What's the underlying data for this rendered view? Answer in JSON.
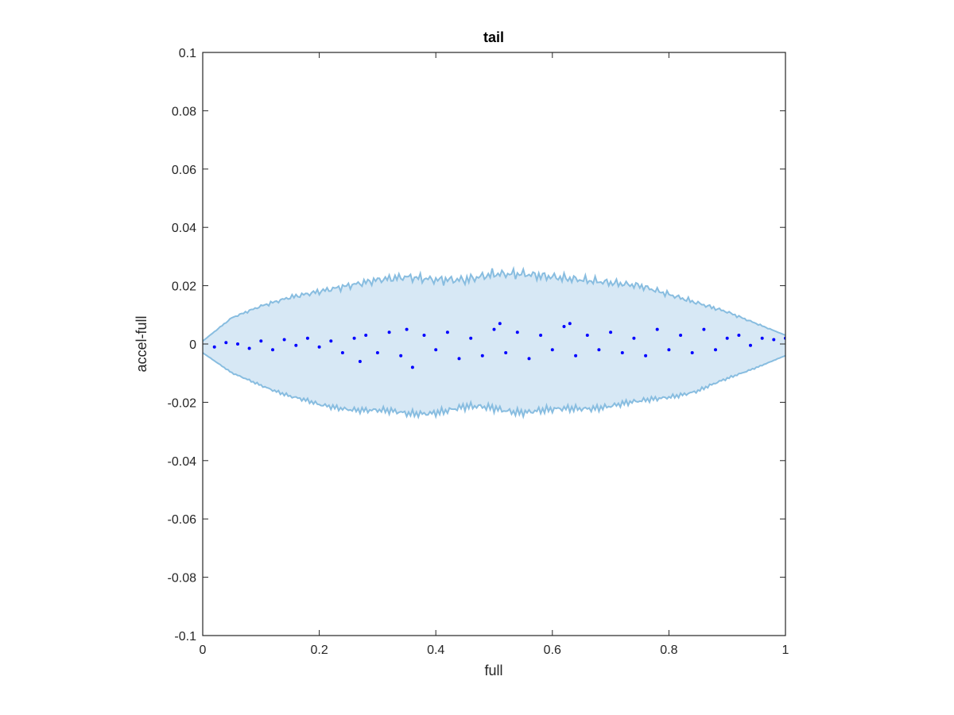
{
  "chart_data": {
    "type": "scatter",
    "title": "tail",
    "xlabel": "full",
    "ylabel": "accel-full",
    "xlim": [
      0,
      1
    ],
    "ylim": [
      -0.1,
      0.1
    ],
    "xticks": [
      0,
      0.2,
      0.4,
      0.6,
      0.8,
      1
    ],
    "xtick_labels": [
      "0",
      "0.2",
      "0.4",
      "0.6",
      "0.8",
      "1"
    ],
    "yticks": [
      -0.1,
      -0.08,
      -0.06,
      -0.04,
      -0.02,
      0,
      0.02,
      0.04,
      0.06,
      0.08,
      0.1
    ],
    "ytick_labels": [
      "-0.1",
      "-0.08",
      "-0.06",
      "-0.04",
      "-0.02",
      "0",
      "0.02",
      "0.04",
      "0.06",
      "0.08",
      "0.1"
    ],
    "grid": false,
    "band": {
      "color": "#88bde0",
      "fill_color": "#d7e8f5",
      "x": [
        0,
        0.05,
        0.1,
        0.15,
        0.2,
        0.25,
        0.3,
        0.35,
        0.4,
        0.45,
        0.5,
        0.55,
        0.6,
        0.65,
        0.7,
        0.75,
        0.8,
        0.85,
        0.9,
        0.95,
        1
      ],
      "upper": [
        0.001,
        0.009,
        0.013,
        0.016,
        0.018,
        0.02,
        0.022,
        0.023,
        0.022,
        0.022,
        0.024,
        0.024,
        0.023,
        0.022,
        0.021,
        0.02,
        0.017,
        0.014,
        0.011,
        0.007,
        0.003
      ],
      "lower": [
        -0.003,
        -0.01,
        -0.014,
        -0.018,
        -0.021,
        -0.022,
        -0.023,
        -0.024,
        -0.023,
        -0.022,
        -0.022,
        -0.023,
        -0.023,
        -0.022,
        -0.021,
        -0.02,
        -0.018,
        -0.016,
        -0.012,
        -0.008,
        -0.004
      ]
    },
    "points": {
      "color": "#0000ff",
      "x": [
        0.02,
        0.04,
        0.06,
        0.08,
        0.1,
        0.12,
        0.14,
        0.16,
        0.18,
        0.2,
        0.22,
        0.24,
        0.26,
        0.27,
        0.28,
        0.3,
        0.32,
        0.34,
        0.35,
        0.36,
        0.38,
        0.4,
        0.42,
        0.44,
        0.46,
        0.48,
        0.5,
        0.51,
        0.52,
        0.54,
        0.56,
        0.58,
        0.6,
        0.62,
        0.63,
        0.64,
        0.66,
        0.68,
        0.7,
        0.72,
        0.74,
        0.76,
        0.78,
        0.8,
        0.82,
        0.84,
        0.86,
        0.88,
        0.9,
        0.92,
        0.94,
        0.96,
        0.98,
        1.0
      ],
      "y": [
        -0.001,
        0.0005,
        0.0,
        -0.0015,
        0.001,
        -0.002,
        0.0015,
        -0.0005,
        0.002,
        -0.001,
        0.001,
        -0.003,
        0.002,
        -0.006,
        0.003,
        -0.003,
        0.004,
        -0.004,
        0.005,
        -0.008,
        0.003,
        -0.002,
        0.004,
        -0.005,
        0.002,
        -0.004,
        0.005,
        0.007,
        -0.003,
        0.004,
        -0.005,
        0.003,
        -0.002,
        0.006,
        0.007,
        -0.004,
        0.003,
        -0.002,
        0.004,
        -0.003,
        0.002,
        -0.004,
        0.005,
        -0.002,
        0.003,
        -0.003,
        0.005,
        -0.002,
        0.002,
        0.003,
        -0.0005,
        0.002,
        0.0015,
        0.002
      ]
    }
  }
}
